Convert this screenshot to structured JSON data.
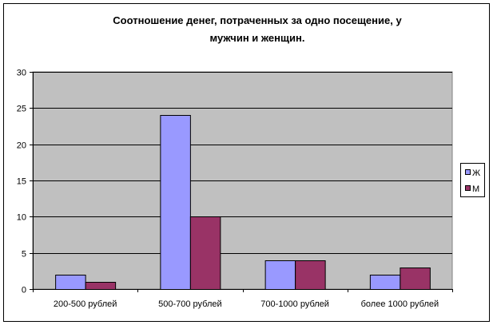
{
  "chart_data": {
    "type": "bar",
    "title_lines": [
      "Соотношение  денег, потраченных за одно посещение, у",
      "мужчин и женщин."
    ],
    "categories": [
      "200-500 рублей",
      "500-700 рублей",
      "700-1000 рублей",
      "более 1000 рублей"
    ],
    "series": [
      {
        "name": "Ж",
        "values": [
          2,
          24,
          4,
          2
        ],
        "color": "#9999FF"
      },
      {
        "name": "М",
        "values": [
          1,
          10,
          4,
          3
        ],
        "color": "#993366"
      }
    ],
    "ylim": [
      0,
      30
    ],
    "yticks": [
      0,
      5,
      10,
      15,
      20,
      25,
      30
    ],
    "grid": true,
    "plot_background": "#C0C0C0",
    "legend": "right"
  }
}
